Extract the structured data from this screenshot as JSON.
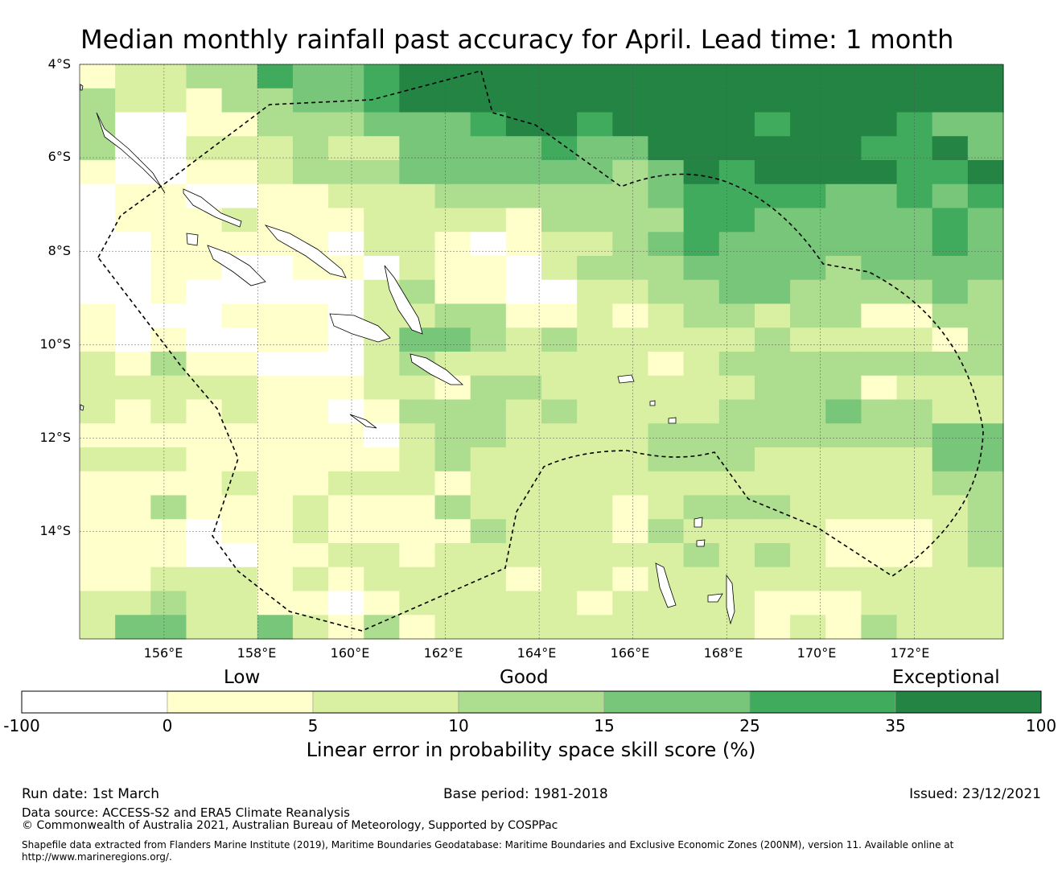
{
  "title": "Median monthly rainfall past accuracy for April. Lead time: 1 month",
  "chart_data": {
    "type": "heatmap",
    "variable": "Linear error in probability space skill score (%)",
    "lat_labels": [
      "4°S",
      "6°S",
      "8°S",
      "10°S",
      "12°S",
      "14°S"
    ],
    "lon_labels": [
      "156°E",
      "158°E",
      "160°E",
      "162°E",
      "164°E",
      "166°E",
      "168°E",
      "170°E",
      "172°E"
    ],
    "lon_range": [
      154.2,
      173.9
    ],
    "lat_range": [
      -16.3,
      -4.0
    ],
    "grid_note": "Cells are one category index each (0=-100..0, 1=0..5, 2=5..10, 3=10..15, 4=15..25, 5=25..35, 6=35..100); rows run north to south, columns west to east",
    "grid": [
      "12233544566666666666666666",
      "32213344566666666666666666",
      "30011333444566566665666544",
      "30022232244445446666665564",
      "10011233344444434656666556",
      "01100112223333334555544545",
      "01112111222213333554444454",
      "00111110221012234544444454",
      "00110011021102333444434444",
      "00100000231100223344333343",
      "10001110223311212332331133",
      "10100110244323222223222213",
      "21311000232222221233333333",
      "22222111221332222223331222",
      "21212110133323222233343322",
      "11111111023322223333333344",
      "22211111123222223332222244",
      "11112112221222222222222233",
      "11311121113222212333222223",
      "11101121111322213222211123",
      "11100112212222222323211123",
      "11222121222212212222222222",
      "22322110122222122221112222",
      "24422421312222222221213222"
    ],
    "categories": [
      "Low",
      "Good",
      "Exceptional"
    ],
    "colorbar": {
      "ticks": [
        "-100",
        "0",
        "5",
        "10",
        "15",
        "25",
        "35",
        "100"
      ],
      "colors": [
        "#ffffff",
        "#ffffcc",
        "#d9f0a3",
        "#addd8e",
        "#78c679",
        "#41ab5d",
        "#238443"
      ],
      "label": "Linear error in probability space skill score (%)"
    }
  },
  "footer": {
    "run_date": "Run date: 1st March",
    "base_period": "Base period: 1981-2018",
    "issued": "Issued: 23/12/2021",
    "data_source": "Data source: ACCESS-S2 and ERA5 Climate Reanalysis",
    "copyright": "© Commonwealth of Australia 2021, Australian Bureau of Meteorology, Supported by COSPPac",
    "shapefile": "Shapefile data extracted from Flanders Marine Institute (2019), Maritime Boundaries Geodatabase: Maritime Boundaries and Exclusive Economic Zones (200NM), version 11. Available online at http://www.marineregions.org/."
  }
}
